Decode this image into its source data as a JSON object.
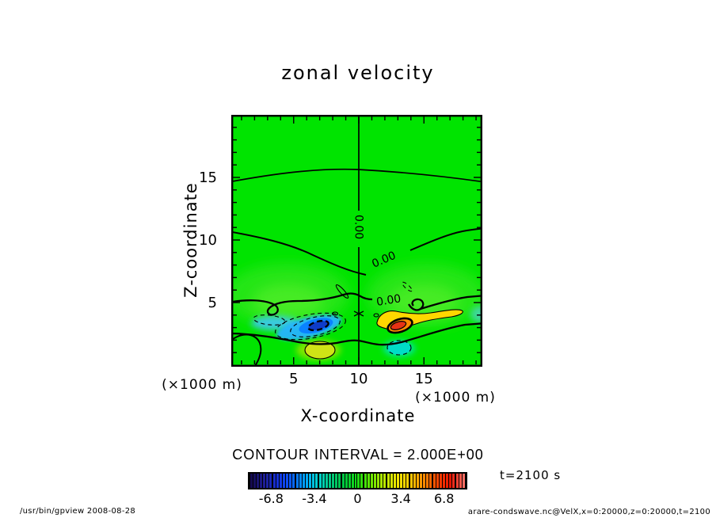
{
  "chart_data": {
    "type": "heatmap",
    "subtype": "filled contour plot with line contours (gpview / Dennou DCL style)",
    "title": "zonal velocity",
    "xlabel": "X-coordinate",
    "ylabel": "Z-coordinate",
    "x_unit_label": "(×1000 m)",
    "y_unit_label": "(×1000 m)",
    "xlim": [
      0,
      20
    ],
    "ylim": [
      0,
      20
    ],
    "x_major_ticks": [
      5,
      10,
      15
    ],
    "y_major_ticks": [
      5,
      10,
      15
    ],
    "minor_tick_step": 1,
    "grid": false,
    "contour_interval": 2.0,
    "contour_interval_label": "CONTOUR INTERVAL = 2.000E+00",
    "zero_label": "0.00",
    "contour_labels": [
      "0.00",
      "0.00",
      "0.00"
    ],
    "time_label": "t=2100 s",
    "colorbar": {
      "orientation": "horizontal",
      "legend_position": "bottom-center",
      "range": [
        -8.5,
        8.5
      ],
      "tick_values": [
        -6.8,
        -3.4,
        0,
        3.4,
        6.8
      ],
      "tick_labels": [
        "-6.8",
        "-3.4",
        "0",
        "3.4",
        "6.8"
      ],
      "color_stops": [
        "#140a50",
        "#1e1e96",
        "#1432dc",
        "#0a5aff",
        "#00a0ff",
        "#00d2d2",
        "#00c87d",
        "#00c83c",
        "#14dc14",
        "#64e600",
        "#b4e600",
        "#f0e600",
        "#ffc800",
        "#ff8c00",
        "#ff4600",
        "#e61400",
        "#ff6e64"
      ]
    },
    "field_features": [
      {
        "label": "negative anomaly core (blue)",
        "x": 6.8,
        "z": 3.2,
        "approx_value": -7.5
      },
      {
        "label": "positive anomaly core (red/orange)",
        "x": 13.2,
        "z": 3.2,
        "approx_value": 7.5
      },
      {
        "label": "vertical 0.00 contour (symmetry axis)",
        "x": 10
      },
      {
        "label": "wavy 0.00 contour near z=15 spanning full width"
      },
      {
        "label": "labeled 0.00 contour dipping from z=10 at edges toward z=7 at center"
      },
      {
        "label": "secondary yellow-green maximum below blue core",
        "x": 6.9,
        "z": 1.4
      },
      {
        "label": "secondary cyan minimum below red core",
        "x": 13.0,
        "z": 1.5
      }
    ],
    "colors": {
      "plot_background": "#00e400",
      "light_green_wash": "#55ee2a",
      "negative_outer": "#28b4ff",
      "negative_mid": "#0a82ff",
      "negative_core": "#0f3cc8",
      "positive_outer": "#ffd700",
      "positive_mid": "#ff8c00",
      "positive_core": "#e63214",
      "contour_line": "#000000"
    }
  },
  "footer": {
    "left": "/usr/bin/gpview  2008-08-28",
    "right": "arare-condswave.nc@VelX,x=0:20000,z=0:20000,t=2100"
  }
}
